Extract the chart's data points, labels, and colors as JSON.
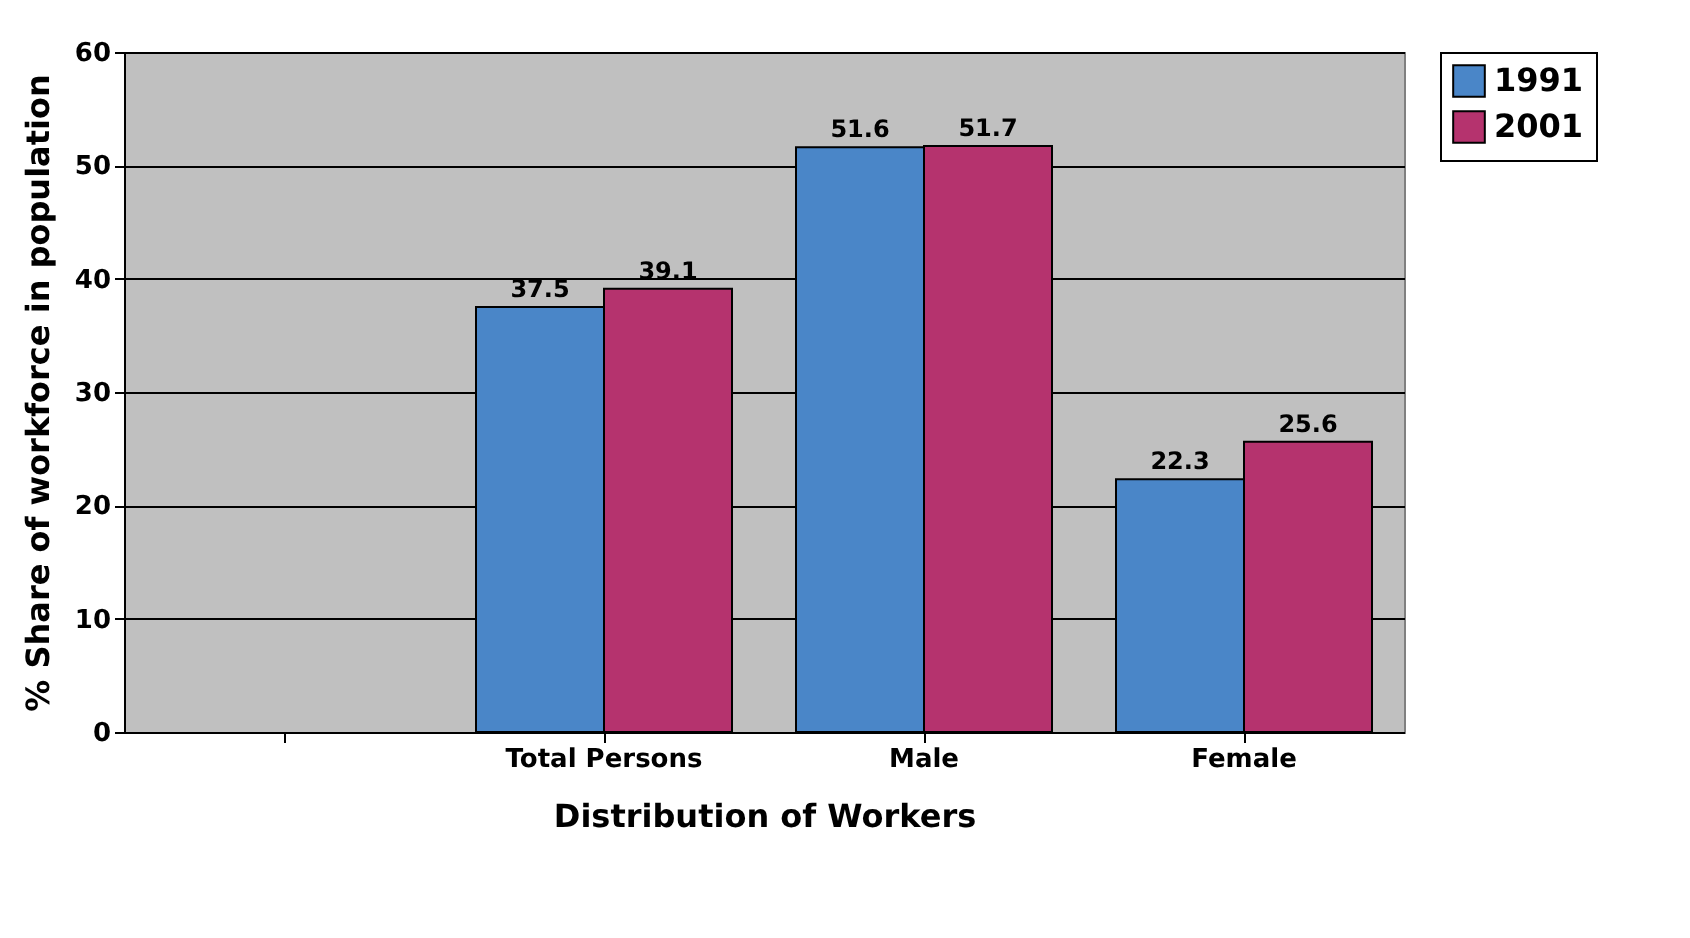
{
  "chart_data": {
    "type": "bar",
    "xlabel": "Distribution of Workers",
    "ylabel": "% Share of workforce in population",
    "categories": [
      null,
      "Total Persons",
      "Male",
      "Female"
    ],
    "series": [
      {
        "name": "1991",
        "color": "#4a86c8",
        "values": [
          null,
          37.5,
          51.6,
          22.3
        ]
      },
      {
        "name": "2001",
        "color": "#b5336e",
        "values": [
          null,
          39.1,
          51.7,
          25.6
        ]
      }
    ],
    "ylim": [
      0,
      60
    ],
    "yticks": [
      0,
      10,
      20,
      30,
      40,
      50,
      60
    ],
    "grid": "y",
    "legend": "right",
    "data_labels": true
  }
}
